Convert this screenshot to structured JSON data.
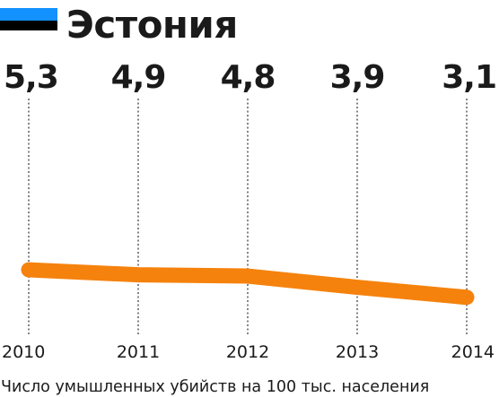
{
  "header": {
    "title": "Эстония",
    "flag_colors": [
      "#1291ff",
      "#000000",
      "#ffffff"
    ],
    "flag_icon": "estonia-flag-icon"
  },
  "chart_data": {
    "type": "line",
    "title": "Эстония",
    "categories": [
      "2010",
      "2011",
      "2012",
      "2013",
      "2014"
    ],
    "values": [
      5.3,
      4.9,
      4.8,
      3.9,
      3.1
    ],
    "value_labels": [
      "5,3",
      "4,9",
      "4,8",
      "3,9",
      "3,1"
    ],
    "ylim": [
      0,
      20
    ],
    "grid": false,
    "line_color": "#f5820d",
    "caption": "Число умышленных убийств на 100 тыс. населения"
  }
}
